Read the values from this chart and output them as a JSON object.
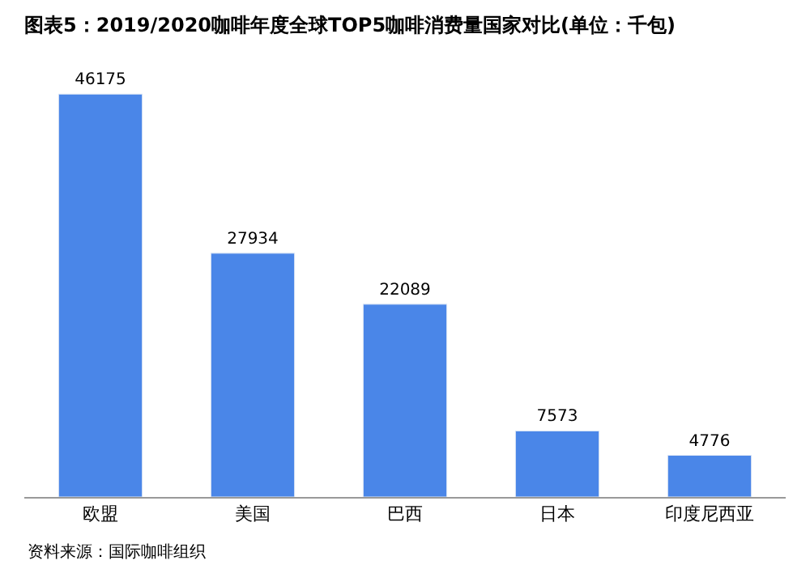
{
  "chart_data": {
    "type": "bar",
    "title": "图表5：2019/2020咖啡年度全球TOP5咖啡消费量国家对比(单位：千包)",
    "categories": [
      "欧盟",
      "美国",
      "巴西",
      "日本",
      "印度尼西亚"
    ],
    "values": [
      46175,
      27934,
      22089,
      7573,
      4776
    ],
    "color": "#4a86e8",
    "data_labels": true,
    "legend": false,
    "annotations": [
      "资料来源：国际咖啡组织"
    ]
  }
}
